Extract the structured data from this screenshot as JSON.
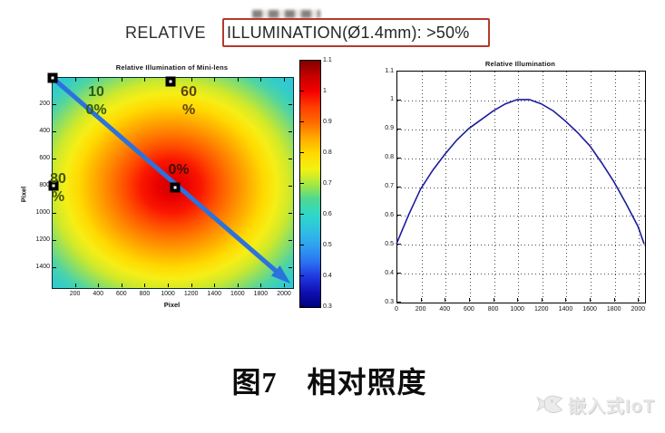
{
  "header": {
    "prefix": "RELATIVE",
    "boxed": "ILLUMINATION(Ø1.4mm): >50%",
    "box_color": "#b43a2e"
  },
  "caption": "图7　相对照度",
  "watermark": {
    "text": "嵌入式IoT",
    "logo": "fish-logo"
  },
  "chart_data": [
    {
      "type": "heatmap",
      "title": "Relative Illumination of Mini-lens",
      "xlabel": "Pixel",
      "ylabel": "Pixel",
      "x_ticks": [
        200,
        400,
        600,
        800,
        1000,
        1200,
        1400,
        1600,
        1800,
        2000
      ],
      "y_ticks": [
        200,
        400,
        600,
        800,
        1000,
        1200,
        1400
      ],
      "x_range": [
        0,
        2070
      ],
      "y_range": [
        0,
        1550
      ],
      "colormap": "jet",
      "colorbar_ticks": [
        1.1,
        1,
        0.9,
        0.8,
        0.7,
        0.6,
        0.5,
        0.4,
        0.3
      ],
      "colorbar_range": [
        0.3,
        1.1
      ],
      "peak": {
        "x": 1020,
        "y": 800,
        "value": 1.02
      },
      "corner_value": 0.55,
      "annotations": [
        {
          "text": "10\n0%",
          "color": "#2f5c12",
          "x": 383,
          "y": 47
        },
        {
          "text": "60\n%",
          "color": "#5f430c",
          "x": 1180,
          "y": 47
        },
        {
          "text": "80\n%",
          "color": "#44550e",
          "x": 55,
          "y": 688
        },
        {
          "text": "0%",
          "color": "#431007",
          "x": 1094,
          "y": 621
        }
      ],
      "markers": [
        {
          "x": 8,
          "y": 7
        },
        {
          "x": 1023,
          "y": 33
        },
        {
          "x": 16,
          "y": 802
        },
        {
          "x": 1062,
          "y": 815
        }
      ],
      "diagonal_line": {
        "from": [
          8,
          7
        ],
        "to": [
          1992,
          1476
        ],
        "color": "#2b72dd"
      }
    },
    {
      "type": "line",
      "title": "Relative Illumination",
      "xlabel": "",
      "ylabel": "",
      "x_ticks": [
        0,
        200,
        400,
        600,
        800,
        1000,
        1200,
        1400,
        1600,
        1800,
        2000
      ],
      "y_ticks": [
        1.1,
        1,
        0.9,
        0.8,
        0.7,
        0.6,
        0.5,
        0.4,
        0.3
      ],
      "xlim": [
        0,
        2050
      ],
      "ylim": [
        0.3,
        1.1
      ],
      "grid": "dotted",
      "series": [
        {
          "name": "relative illumination",
          "color": "#1c1c9e",
          "points": [
            [
              0,
              0.5
            ],
            [
              100,
              0.6
            ],
            [
              200,
              0.69
            ],
            [
              300,
              0.755
            ],
            [
              400,
              0.81
            ],
            [
              500,
              0.86
            ],
            [
              600,
              0.9
            ],
            [
              700,
              0.93
            ],
            [
              800,
              0.96
            ],
            [
              900,
              0.985
            ],
            [
              1000,
              1.0
            ],
            [
              1100,
              1.0
            ],
            [
              1200,
              0.985
            ],
            [
              1300,
              0.96
            ],
            [
              1400,
              0.925
            ],
            [
              1500,
              0.885
            ],
            [
              1600,
              0.84
            ],
            [
              1700,
              0.78
            ],
            [
              1800,
              0.715
            ],
            [
              1900,
              0.64
            ],
            [
              2000,
              0.56
            ],
            [
              2050,
              0.5
            ]
          ]
        }
      ]
    }
  ]
}
